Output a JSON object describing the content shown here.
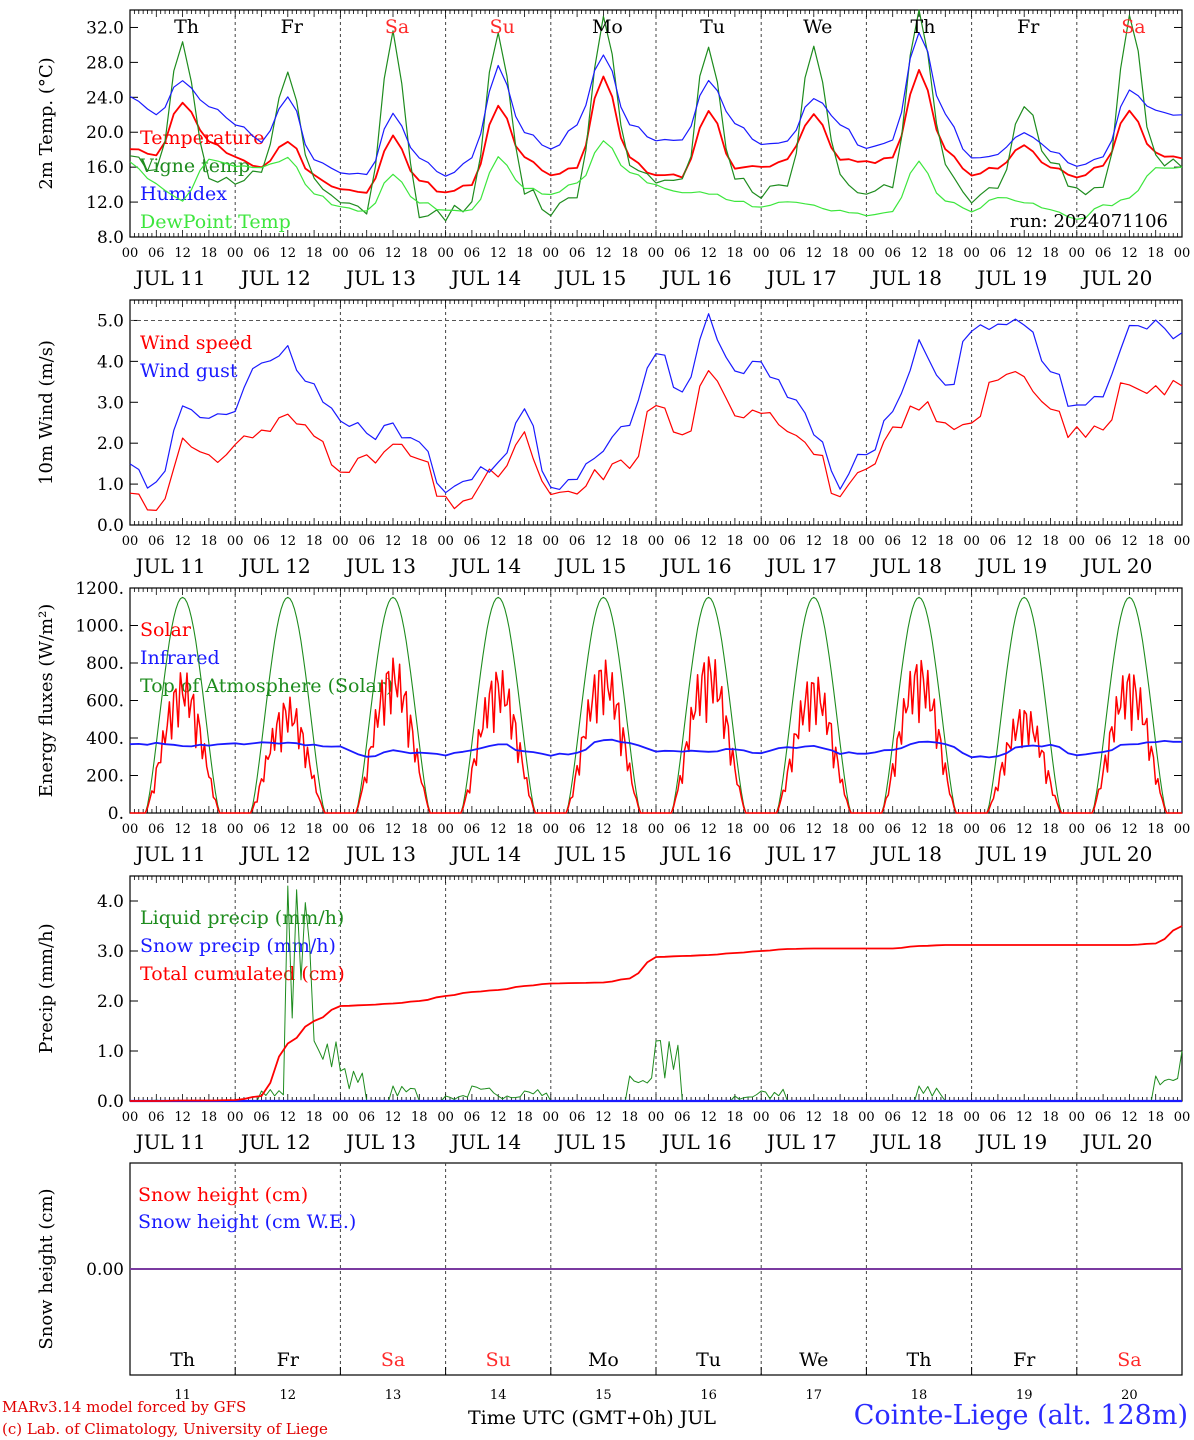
{
  "footer": {
    "credit_line1": "MARv3.14 model forced by GFS",
    "credit_line2": "(c) Lab. of Climatology, University of Liege",
    "xlabel": "Time UTC (GMT+0h) JUL",
    "station": "Cointe-Liege (alt. 128m)"
  },
  "colors": {
    "red": "#ff0000",
    "green": "#1e8c1e",
    "blue": "#1a1aff",
    "lightgreen": "#3de63d",
    "purple": "#7a3aa0",
    "weekend": "#ff2a2a"
  },
  "chart_data": [
    {
      "id": "temperature",
      "type": "line",
      "ylabel": "2m Temp. (°C)",
      "ylim": [
        8,
        34
      ],
      "yticks": [
        "8.0",
        "12.0",
        "16.0",
        "20.0",
        "24.0",
        "28.0",
        "32.0"
      ],
      "x_ticks": [
        "00",
        "06",
        "12",
        "18"
      ],
      "date_labels": [
        "JUL 11",
        "JUL 12",
        "JUL 13",
        "JUL 14",
        "JUL 15",
        "JUL 16",
        "JUL 17",
        "JUL 18",
        "JUL 19",
        "JUL 20"
      ],
      "day_labels": [
        "Th",
        "Fr",
        "Sa",
        "Su",
        "Mo",
        "Tu",
        "We",
        "Th",
        "Fr",
        "Sa"
      ],
      "weekend_days": [
        2,
        3,
        9
      ],
      "annotation": "run: 2024071106",
      "x": "hours since JUL 11 00 UTC, every 6 h",
      "series": [
        {
          "name": "Temperature",
          "color": "red",
          "values": [
            18,
            17.5,
            23.5,
            19,
            17,
            16,
            19,
            15,
            13.5,
            13,
            19.5,
            14.5,
            13,
            14,
            23,
            17,
            15,
            16,
            26.5,
            17,
            15,
            15,
            22.5,
            16,
            16,
            17,
            22,
            17,
            16.5,
            17,
            27,
            18,
            15,
            16,
            18.5,
            16,
            15,
            16,
            22.5,
            17.5,
            17
          ]
        },
        {
          "name": "Vigne temp",
          "color": "green",
          "values": [
            17,
            16,
            30,
            15,
            14,
            15,
            27,
            14,
            11.5,
            11,
            31,
            11,
            10.5,
            12,
            31,
            13.5,
            11,
            13,
            33,
            17,
            14,
            14,
            30,
            15,
            13,
            14,
            30,
            15,
            13,
            14,
            34,
            16,
            12.5,
            14,
            23,
            17,
            13,
            13,
            33,
            17,
            16
          ]
        },
        {
          "name": "Humidex",
          "color": "blue",
          "values": [
            24,
            22,
            26,
            23,
            21,
            19,
            24,
            17,
            15.5,
            15,
            22,
            17,
            15,
            17,
            27.5,
            20,
            18,
            21,
            29,
            21,
            19,
            19,
            26,
            21,
            18.5,
            19,
            24,
            21,
            18,
            19,
            31.5,
            22,
            17,
            17.5,
            20,
            18,
            16,
            17,
            25,
            22.5,
            22
          ]
        },
        {
          "name": "DewPoint Temp",
          "color": "lightgreen",
          "values": [
            16.5,
            14,
            12,
            17,
            16,
            16,
            17,
            13,
            11.5,
            11,
            15,
            12,
            11,
            11,
            17,
            13.5,
            13,
            14,
            19,
            15.5,
            14,
            13,
            13,
            12,
            11.5,
            12,
            11.5,
            11,
            10.5,
            11,
            16.5,
            12,
            11,
            12.5,
            12,
            11,
            10,
            11.5,
            12.5,
            16,
            16
          ]
        }
      ]
    },
    {
      "id": "wind",
      "type": "line",
      "ylabel": "10m Wind (m/s)",
      "ylim": [
        0,
        5.5
      ],
      "yticks": [
        "0.0",
        "1.0",
        "2.0",
        "3.0",
        "4.0",
        "5.0"
      ],
      "ref_line": 5.0,
      "x_ticks": [
        "00",
        "06",
        "12",
        "18"
      ],
      "date_labels": [
        "JUL 11",
        "JUL 12",
        "JUL 13",
        "JUL 14",
        "JUL 15",
        "JUL 16",
        "JUL 17",
        "JUL 18",
        "JUL 19",
        "JUL 20"
      ],
      "series": [
        {
          "name": "Wind speed",
          "color": "red",
          "values": [
            0.8,
            0.4,
            2.0,
            1.5,
            2.0,
            2.3,
            2.6,
            2.2,
            1.5,
            1.5,
            1.9,
            1.6,
            0.5,
            0.7,
            1.3,
            2.1,
            0.6,
            0.8,
            1.3,
            1.5,
            3.0,
            2.1,
            3.6,
            2.8,
            2.9,
            2.5,
            1.8,
            0.7,
            1.2,
            2.2,
            3.0,
            2.4,
            2.6,
            3.7,
            3.5,
            2.8,
            2.2,
            2.4,
            3.6,
            3.3,
            3.4
          ]
        },
        {
          "name": "Wind gust",
          "color": "blue",
          "values": [
            1.5,
            1.0,
            3.0,
            2.4,
            3.0,
            3.8,
            4.2,
            3.4,
            2.6,
            2.2,
            2.4,
            2.2,
            0.9,
            1.1,
            1.6,
            3.0,
            1.0,
            1.2,
            1.8,
            2.5,
            4.3,
            3.2,
            5.0,
            3.8,
            3.9,
            3.3,
            2.4,
            1.1,
            1.8,
            2.8,
            4.4,
            3.3,
            4.6,
            5.0,
            4.8,
            3.8,
            2.8,
            3.2,
            4.9,
            5.0,
            4.7
          ]
        }
      ]
    },
    {
      "id": "radiation",
      "type": "line",
      "ylabel": "Energy fluxes (W/m²)",
      "ylim": [
        0,
        1200
      ],
      "yticks": [
        "0.",
        "200.",
        "400.",
        "600.",
        "800.",
        "1000.",
        "1200."
      ],
      "x_ticks": [
        "00",
        "06",
        "12",
        "18"
      ],
      "date_labels": [
        "JUL 11",
        "JUL 12",
        "JUL 13",
        "JUL 14",
        "JUL 15",
        "JUL 16",
        "JUL 17",
        "JUL 18",
        "JUL 19",
        "JUL 20"
      ],
      "daily_solar_max": [
        760,
        620,
        840,
        780,
        830,
        860,
        750,
        840,
        580,
        780
      ],
      "daily_toa_max": [
        1150,
        1150,
        1150,
        1150,
        1150,
        1150,
        1150,
        1150,
        1150,
        1150
      ],
      "series": [
        {
          "name": "Solar",
          "color": "red"
        },
        {
          "name": "Infrared",
          "color": "blue",
          "values": [
            365,
            370,
            355,
            360,
            370,
            375,
            370,
            360,
            350,
            300,
            330,
            320,
            310,
            330,
            370,
            330,
            310,
            320,
            390,
            370,
            330,
            330,
            330,
            340,
            320,
            350,
            360,
            320,
            320,
            340,
            380,
            370,
            300,
            300,
            360,
            360,
            310,
            320,
            370,
            380,
            380
          ]
        },
        {
          "name": "Top of Atmosphere (Solar)",
          "color": "green"
        }
      ]
    },
    {
      "id": "precip",
      "type": "line",
      "ylabel": "Precip (mm/h)",
      "ylim": [
        0,
        4.5
      ],
      "yticks": [
        "0.0",
        "1.0",
        "2.0",
        "3.0",
        "4.0"
      ],
      "x_ticks": [
        "00",
        "06",
        "12",
        "18"
      ],
      "date_labels": [
        "JUL 11",
        "JUL 12",
        "JUL 13",
        "JUL 14",
        "JUL 15",
        "JUL 16",
        "JUL 17",
        "JUL 18",
        "JUL 19",
        "JUL 20"
      ],
      "series": [
        {
          "name": "Liquid precip (mm/h)",
          "color": "green",
          "values": [
            0,
            0.02,
            0,
            0,
            0,
            0.2,
            4.3,
            1.2,
            0.6,
            0,
            0.3,
            0,
            0.1,
            0.3,
            0.1,
            0.2,
            0,
            0,
            0,
            0.5,
            1.2,
            0,
            0,
            0.1,
            0.2,
            0,
            0,
            0,
            0,
            0,
            0.3,
            0,
            0,
            0,
            0,
            0,
            0,
            0,
            0,
            0.5,
            1.0
          ]
        },
        {
          "name": "Snow precip (mm/h)",
          "color": "blue",
          "values": [
            0,
            0,
            0,
            0,
            0,
            0,
            0,
            0,
            0,
            0,
            0,
            0,
            0,
            0,
            0,
            0,
            0,
            0,
            0,
            0,
            0,
            0,
            0,
            0,
            0,
            0,
            0,
            0,
            0,
            0,
            0,
            0,
            0,
            0,
            0,
            0,
            0,
            0,
            0,
            0,
            0
          ]
        },
        {
          "name": "Total cumulated (cm)",
          "color": "red",
          "values": [
            0,
            0,
            0.01,
            0.01,
            0.02,
            0.1,
            1.15,
            1.6,
            1.9,
            1.92,
            1.95,
            2.0,
            2.1,
            2.18,
            2.22,
            2.3,
            2.35,
            2.36,
            2.37,
            2.45,
            2.88,
            2.9,
            2.92,
            2.96,
            3.0,
            3.04,
            3.05,
            3.05,
            3.05,
            3.05,
            3.1,
            3.12,
            3.12,
            3.12,
            3.12,
            3.12,
            3.12,
            3.12,
            3.12,
            3.15,
            3.5
          ]
        }
      ]
    },
    {
      "id": "snow",
      "type": "line",
      "ylabel": "Snow height (cm)",
      "yticks": [
        "0.00"
      ],
      "day_labels": [
        "Th",
        "Fr",
        "Sa",
        "Su",
        "Mo",
        "Tu",
        "We",
        "Th",
        "Fr",
        "Sa"
      ],
      "weekend_days": [
        2,
        3,
        9
      ],
      "day_numbers": [
        "11",
        "12",
        "13",
        "14",
        "15",
        "16",
        "17",
        "18",
        "19",
        "20"
      ],
      "series": [
        {
          "name": "Snow height (cm)",
          "color": "red",
          "values": [
            0,
            0
          ]
        },
        {
          "name": "Snow height (cm W.E.)",
          "color": "blue",
          "values": [
            0,
            0
          ]
        }
      ]
    }
  ]
}
